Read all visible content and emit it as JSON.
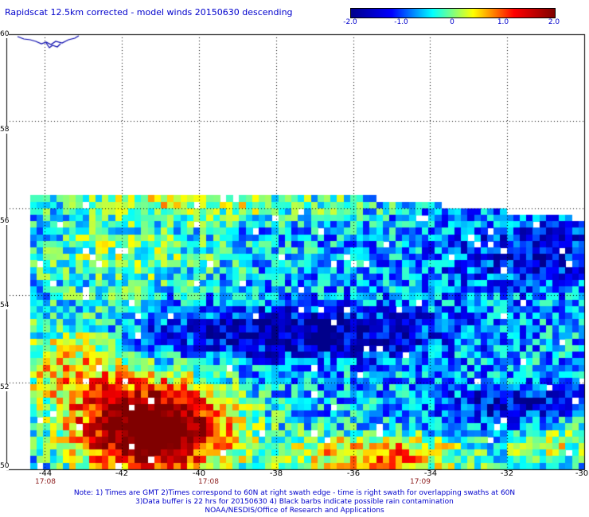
{
  "title": "Rapidscat 12.5km corrected - model winds 20150630 descending",
  "colorbar": {
    "labels": [
      "-2.0",
      "-1.0",
      "0",
      "1.0",
      "2.0"
    ],
    "values": [
      -2.0,
      -1.0,
      0,
      1.0,
      2.0
    ],
    "range": [
      -2.0,
      2.0
    ],
    "colors": [
      "#00008b",
      "#0000ff",
      "#00ffff",
      "#ffff00",
      "#ff0000",
      "#800000"
    ]
  },
  "map": {
    "lat_labels": [
      "60",
      "58",
      "56",
      "54",
      "52",
      "50"
    ],
    "lat_values": [
      60,
      58,
      56,
      54,
      52,
      50
    ],
    "lon_labels": [
      "-44",
      "-42",
      "-40",
      "-38",
      "-36",
      "-34",
      "-32",
      "-30"
    ],
    "lon_values": [
      -44,
      -42,
      -40,
      -38,
      -36,
      -34,
      -32,
      -30
    ],
    "lon_range": [
      -45,
      -30
    ],
    "lat_range": [
      50,
      60
    ],
    "times": [
      {
        "label": "17:08",
        "lon": -44
      },
      {
        "label": "17:08",
        "lon": -40
      },
      {
        "label": "17:09",
        "lon": -34
      }
    ],
    "swath_top_lat": 56.3,
    "land_color": "#0000aa",
    "grid": true
  },
  "notes": [
    "Note: 1) Times are GMT 2)Times correspond to 60N at right swath edge - time is right swath for overlapping swaths at 60N",
    "3)Data buffer is 22 hrs for 20150630 4) Black barbs indicate possible rain contamination",
    "NOAA/NESDIS/Office of Research and Applications"
  ]
}
